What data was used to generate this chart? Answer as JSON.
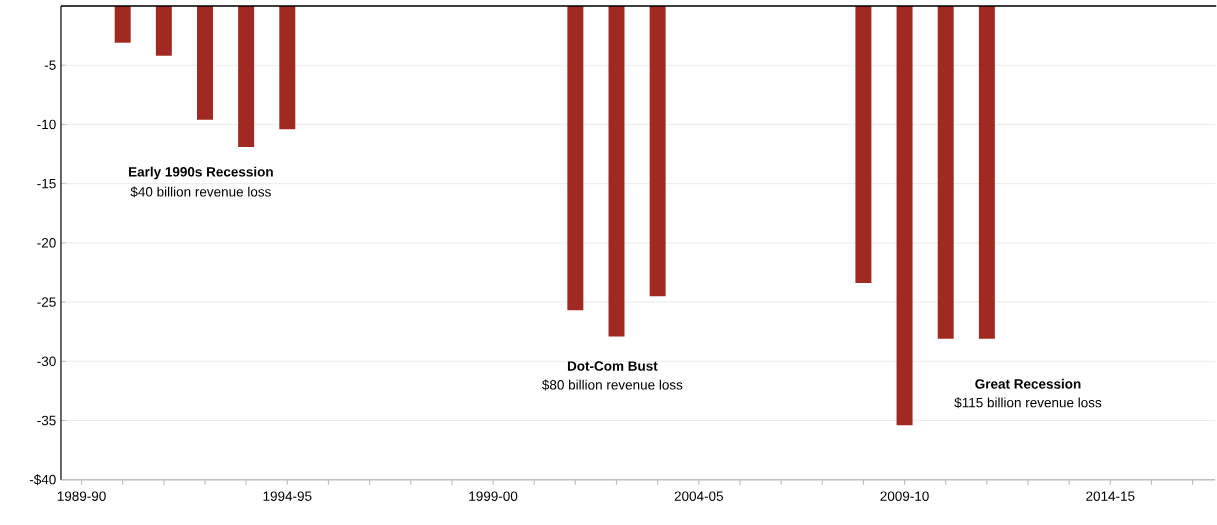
{
  "chart_data": {
    "type": "bar",
    "categories": [
      "1989-90",
      null,
      null,
      null,
      null,
      "1994-95",
      null,
      null,
      null,
      null,
      "1999-00",
      null,
      null,
      null,
      null,
      "2004-05",
      null,
      null,
      null,
      null,
      "2009-10",
      null,
      null,
      null,
      null,
      "2014-15",
      null,
      null
    ],
    "values": [
      null,
      -3.1,
      -4.2,
      -9.6,
      -11.9,
      -10.4,
      null,
      null,
      null,
      null,
      null,
      null,
      -25.7,
      -27.9,
      -24.5,
      null,
      null,
      null,
      null,
      -23.4,
      -35.4,
      -28.1,
      -28.1,
      null,
      null,
      null,
      null,
      null
    ],
    "color": "#a02a22",
    "ylim": [
      -40,
      0
    ],
    "yticks": [
      {
        "value": 0,
        "label": null
      },
      -5,
      -10,
      -15,
      -20,
      -25,
      -30,
      -35,
      {
        "value": -40,
        "label": "-$40"
      }
    ],
    "grid": "y",
    "annotations": [
      "Early 1990s Recession",
      "$40 billion revenue loss",
      "Dot-Com Bust",
      "$80 billion revenue loss",
      "Great Recession",
      "$115 billion revenue loss"
    ]
  }
}
